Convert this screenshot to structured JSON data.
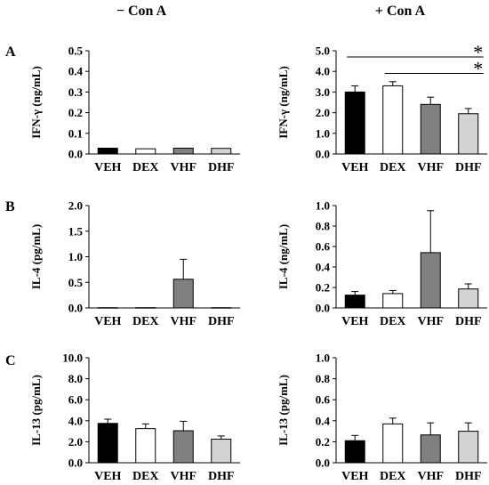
{
  "column_titles": [
    "− Con A",
    "+ Con A"
  ],
  "row_labels": [
    "A",
    "B",
    "C"
  ],
  "colors": {
    "VEH": "#000000",
    "DEX": "#ffffff",
    "VHF": "#808080",
    "DHF": "#d3d3d3"
  },
  "chart_data": [
    {
      "type": "bar",
      "row": 0,
      "col": 0,
      "ylabel": "IFN-γ (ng/mL)",
      "ylim": [
        0,
        0.5
      ],
      "yticks": [
        "0.0",
        "0.1",
        "0.2",
        "0.3",
        "0.4",
        "0.5"
      ],
      "categories": [
        "VEH",
        "DEX",
        "VHF",
        "DHF"
      ],
      "values": [
        0.028,
        0.025,
        0.028,
        0.027
      ],
      "errors": [
        0,
        0,
        0,
        0
      ],
      "significance": []
    },
    {
      "type": "bar",
      "row": 0,
      "col": 1,
      "ylabel": "IFN-γ (ng/mL)",
      "ylim": [
        0,
        5
      ],
      "yticks": [
        "0.0",
        "1.0",
        "2.0",
        "3.0",
        "4.0",
        "5.0"
      ],
      "categories": [
        "VEH",
        "DEX",
        "VHF",
        "DHF"
      ],
      "values": [
        3.0,
        3.3,
        2.4,
        1.95
      ],
      "errors": [
        0.3,
        0.2,
        0.35,
        0.25
      ],
      "significance": [
        {
          "from": "VEH",
          "to": "DHF",
          "level": 4.7,
          "label": "*"
        },
        {
          "from": "DEX",
          "to": "DHF",
          "level": 3.9,
          "label": "*"
        }
      ]
    },
    {
      "type": "bar",
      "row": 1,
      "col": 0,
      "ylabel": "IL-4 (pg/mL)",
      "ylim": [
        0,
        2
      ],
      "yticks": [
        "0.0",
        "0.5",
        "1.0",
        "1.5",
        "2.0"
      ],
      "categories": [
        "VEH",
        "DEX",
        "VHF",
        "DHF"
      ],
      "values": [
        0.005,
        0.005,
        0.56,
        0.005
      ],
      "errors": [
        0,
        0,
        0.39,
        0
      ],
      "significance": []
    },
    {
      "type": "bar",
      "row": 1,
      "col": 1,
      "ylabel": "IL-4 (ng/mL)",
      "ylim": [
        0,
        1
      ],
      "yticks": [
        "0.0",
        "0.2",
        "0.4",
        "0.6",
        "0.8",
        "1.0"
      ],
      "categories": [
        "VEH",
        "DEX",
        "VHF",
        "DHF"
      ],
      "values": [
        0.125,
        0.14,
        0.54,
        0.185
      ],
      "errors": [
        0.035,
        0.03,
        0.41,
        0.05
      ],
      "significance": []
    },
    {
      "type": "bar",
      "row": 2,
      "col": 0,
      "ylabel": "IL-13 (pg/mL)",
      "ylim": [
        0,
        10
      ],
      "yticks": [
        "0.0",
        "2.0",
        "4.0",
        "6.0",
        "8.0",
        "10.0"
      ],
      "categories": [
        "VEH",
        "DEX",
        "VHF",
        "DHF"
      ],
      "values": [
        3.75,
        3.25,
        3.05,
        2.25
      ],
      "errors": [
        0.4,
        0.45,
        0.9,
        0.3
      ],
      "significance": []
    },
    {
      "type": "bar",
      "row": 2,
      "col": 1,
      "ylabel": "IL-13 (pg/mL)",
      "ylim": [
        0,
        1
      ],
      "yticks": [
        "0.0",
        "0.2",
        "0.4",
        "0.6",
        "0.8",
        "1.0"
      ],
      "categories": [
        "VEH",
        "DEX",
        "VHF",
        "DHF"
      ],
      "values": [
        0.21,
        0.37,
        0.265,
        0.3
      ],
      "errors": [
        0.05,
        0.055,
        0.115,
        0.08
      ],
      "significance": []
    }
  ]
}
